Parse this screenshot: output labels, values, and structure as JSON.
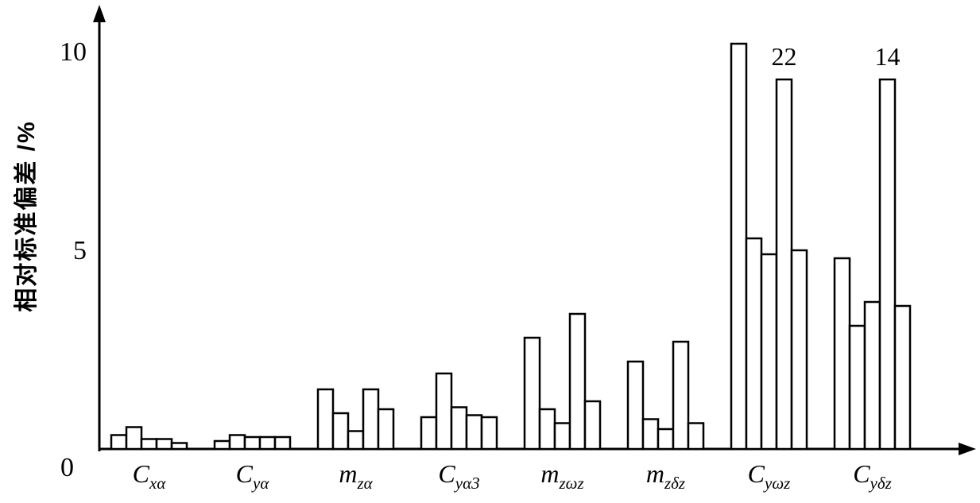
{
  "chart_data": {
    "type": "bar",
    "title": "",
    "ylabel": "相对标准偏差 /%",
    "xlabel": "",
    "ylim": [
      0,
      11
    ],
    "yticks": [
      5,
      10
    ],
    "ytick_labels": [
      "5",
      "10"
    ],
    "origin_label": "0",
    "grid": false,
    "legend": false,
    "bar_fill": "#ffffff",
    "bar_stroke": "#000000",
    "groups": [
      {
        "label_main": "C",
        "label_sub": "xα",
        "values": [
          0.35,
          0.55,
          0.25,
          0.25,
          0.15
        ]
      },
      {
        "label_main": "C",
        "label_sub": "yα",
        "values": [
          0.2,
          0.35,
          0.3,
          0.3,
          0.3
        ]
      },
      {
        "label_main": "m",
        "label_sub": "zα",
        "values": [
          1.5,
          0.9,
          0.45,
          1.5,
          1.0
        ]
      },
      {
        "label_main": "C",
        "label_sub": "yα3",
        "values": [
          0.8,
          1.9,
          1.05,
          0.85,
          0.8
        ]
      },
      {
        "label_main": "m",
        "label_sub": "zωz",
        "values": [
          2.8,
          1.0,
          0.65,
          3.4,
          1.2
        ]
      },
      {
        "label_main": "m",
        "label_sub": "zδz",
        "values": [
          2.2,
          0.75,
          0.5,
          2.7,
          0.65
        ]
      },
      {
        "label_main": "C",
        "label_sub": "yωz",
        "values": [
          10.2,
          5.3,
          4.9,
          9.3,
          5.0
        ],
        "annotation": {
          "bar_index": 3,
          "text": "22",
          "true_value": 22
        }
      },
      {
        "label_main": "C",
        "label_sub": "yδz",
        "values": [
          4.8,
          3.1,
          3.7,
          9.3,
          3.6
        ],
        "annotation": {
          "bar_index": 3,
          "text": "14",
          "true_value": 14
        }
      }
    ]
  }
}
